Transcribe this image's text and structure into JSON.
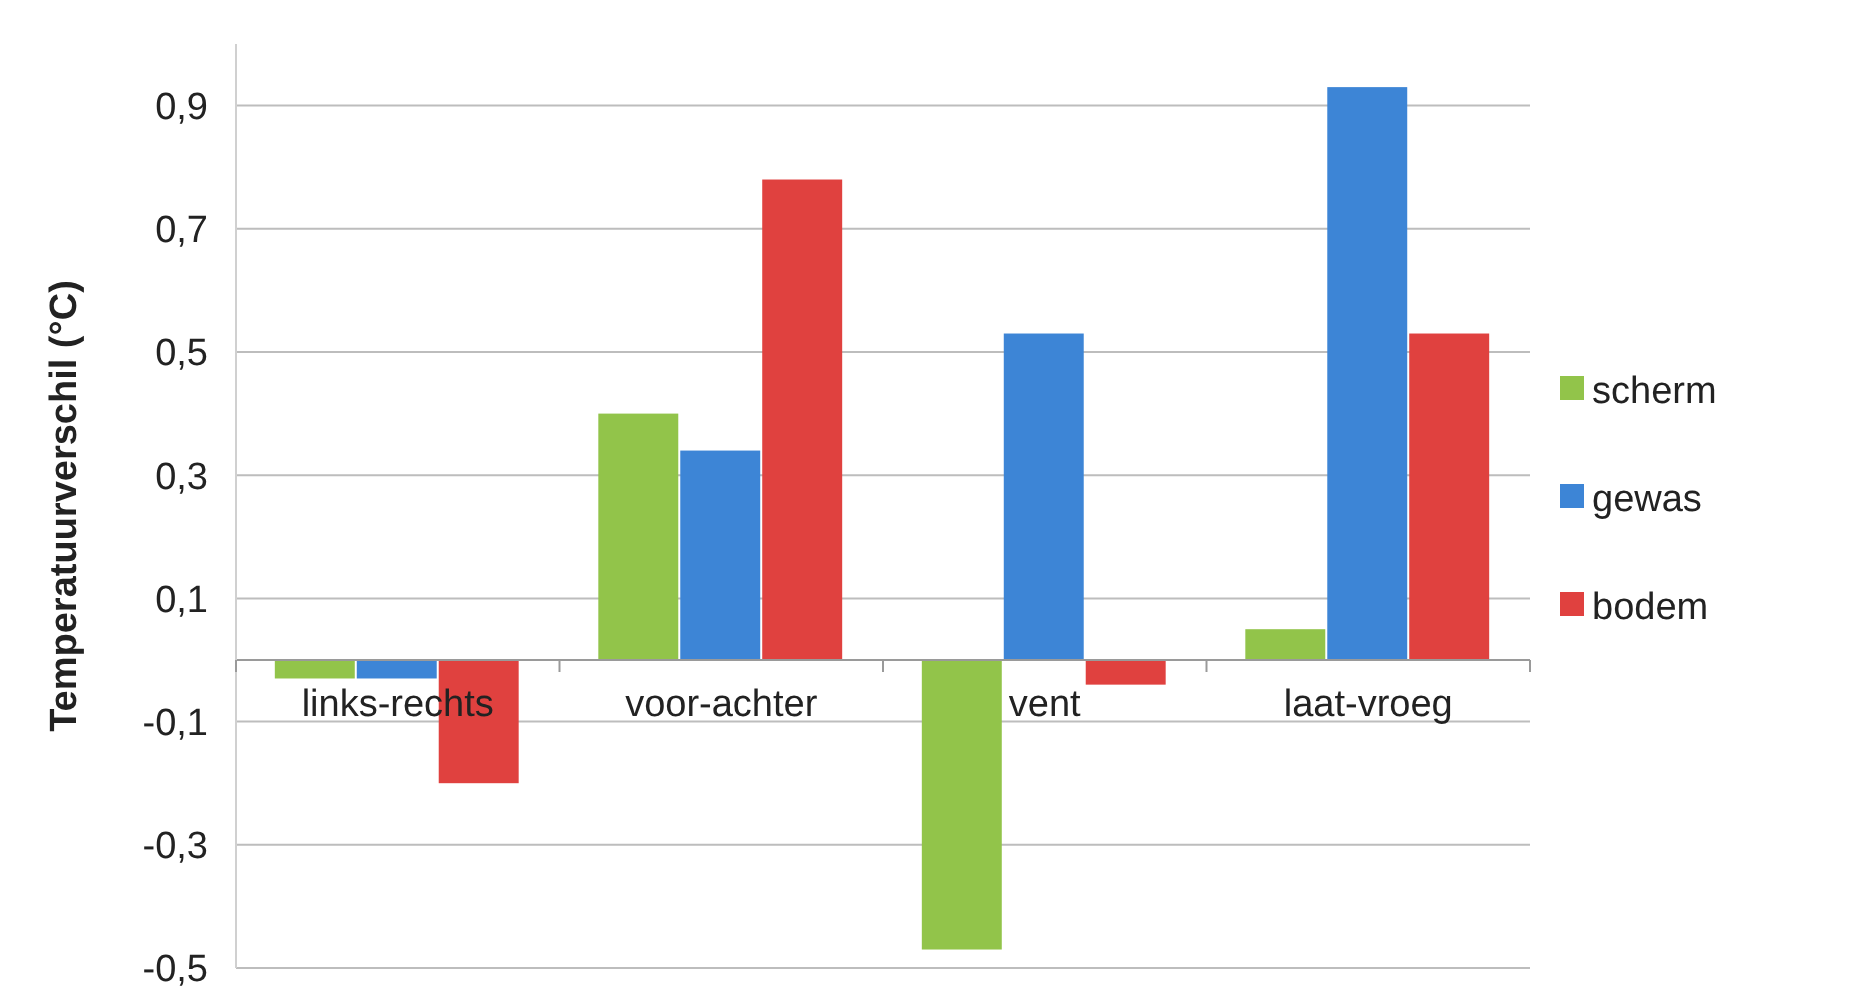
{
  "chart_data": {
    "type": "bar",
    "ylabel": "Temperatuurverschil (°C)",
    "categories": [
      "links-rechts",
      "voor-achter",
      "vent",
      "laat-vroeg"
    ],
    "series": [
      {
        "name": "scherm",
        "color": "#92c44a",
        "values": [
          -0.03,
          0.4,
          -0.47,
          0.05
        ]
      },
      {
        "name": "gewas",
        "color": "#3d85d6",
        "values": [
          -0.03,
          0.34,
          0.53,
          0.93
        ]
      },
      {
        "name": "bodem",
        "color": "#e0413f",
        "values": [
          -0.2,
          0.78,
          -0.04,
          0.53
        ]
      }
    ],
    "ylim": [
      -0.5,
      1.0
    ],
    "yticks": [
      {
        "value": -0.5,
        "label": "-0,5"
      },
      {
        "value": -0.3,
        "label": "-0,3"
      },
      {
        "value": -0.1,
        "label": "-0,1"
      },
      {
        "value": 0.1,
        "label": "0,1"
      },
      {
        "value": 0.3,
        "label": "0,3"
      },
      {
        "value": 0.5,
        "label": "0,5"
      },
      {
        "value": 0.7,
        "label": "0,7"
      },
      {
        "value": 0.9,
        "label": "0,9"
      }
    ],
    "grid": "y",
    "legend": "right"
  }
}
